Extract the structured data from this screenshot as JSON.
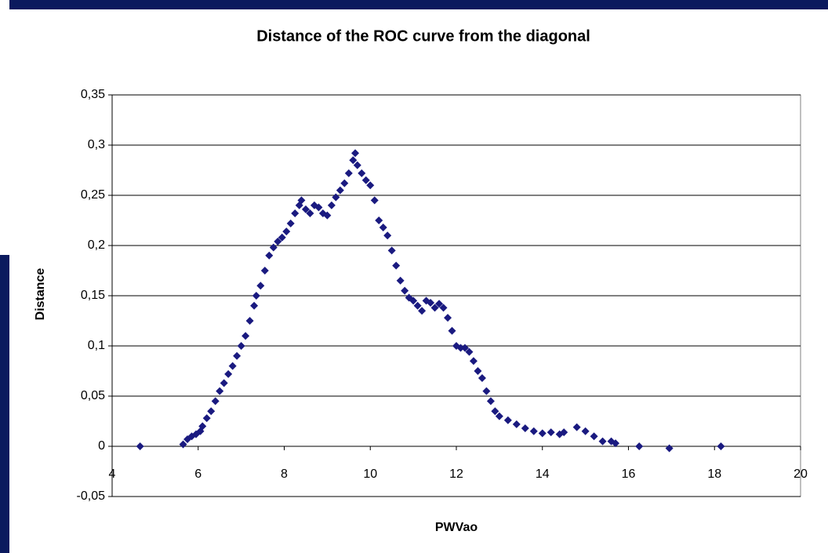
{
  "chart_data": {
    "type": "scatter",
    "title": "Distance of the ROC curve from the diagonal",
    "x_label": "PWVao",
    "y_label": "Distance",
    "color": "#1a1a80",
    "grid": true,
    "xlim": [
      4,
      20
    ],
    "xticks": [
      4,
      6,
      8,
      10,
      12,
      14,
      16,
      18,
      20
    ],
    "ylim": [
      -0.05,
      0.35
    ],
    "yticks": [
      {
        "value": -0.05,
        "label": "-0,05"
      },
      0,
      {
        "value": 0.05,
        "label": "0,05"
      },
      {
        "value": 0.1,
        "label": "0,1"
      },
      {
        "value": 0.15,
        "label": "0,15"
      },
      {
        "value": 0.2,
        "label": "0,2"
      },
      {
        "value": 0.25,
        "label": "0,25"
      },
      {
        "value": 0.3,
        "label": "0,3"
      },
      {
        "value": 0.35,
        "label": "0,35"
      }
    ],
    "x": [
      4.65,
      5.65,
      5.75,
      5.85,
      5.95,
      6.05,
      6.1,
      6.2,
      6.3,
      6.4,
      6.5,
      6.6,
      6.7,
      6.8,
      6.9,
      7.0,
      7.1,
      7.2,
      7.3,
      7.35,
      7.45,
      7.55,
      7.65,
      7.75,
      7.85,
      7.95,
      8.05,
      8.15,
      8.25,
      8.35,
      8.4,
      8.5,
      8.6,
      8.7,
      8.8,
      8.9,
      9.0,
      9.1,
      9.2,
      9.3,
      9.4,
      9.5,
      9.6,
      9.65,
      9.7,
      9.8,
      9.9,
      10.0,
      10.1,
      10.2,
      10.3,
      10.4,
      10.5,
      10.6,
      10.7,
      10.8,
      10.9,
      11.0,
      11.1,
      11.2,
      11.3,
      11.4,
      11.5,
      11.6,
      11.7,
      11.8,
      11.9,
      12.0,
      12.1,
      12.2,
      12.3,
      12.4,
      12.5,
      12.6,
      12.7,
      12.8,
      12.9,
      13.0,
      13.2,
      13.4,
      13.6,
      13.8,
      14.0,
      14.2,
      14.4,
      14.5,
      14.8,
      15.0,
      15.2,
      15.4,
      15.6,
      15.7,
      16.25,
      16.95,
      18.15
    ],
    "values": [
      0,
      0.002,
      0.007,
      0.01,
      0.012,
      0.015,
      0.02,
      0.028,
      0.035,
      0.045,
      0.055,
      0.063,
      0.072,
      0.08,
      0.09,
      0.1,
      0.11,
      0.125,
      0.14,
      0.15,
      0.16,
      0.175,
      0.19,
      0.198,
      0.204,
      0.208,
      0.214,
      0.222,
      0.232,
      0.24,
      0.245,
      0.236,
      0.232,
      0.24,
      0.238,
      0.232,
      0.23,
      0.24,
      0.248,
      0.255,
      0.262,
      0.272,
      0.285,
      0.292,
      0.28,
      0.272,
      0.265,
      0.26,
      0.245,
      0.225,
      0.218,
      0.21,
      0.195,
      0.18,
      0.165,
      0.155,
      0.148,
      0.145,
      0.14,
      0.135,
      0.145,
      0.143,
      0.138,
      0.142,
      0.138,
      0.128,
      0.115,
      0.1,
      0.098,
      0.098,
      0.094,
      0.085,
      0.075,
      0.068,
      0.055,
      0.045,
      0.035,
      0.03,
      0.026,
      0.022,
      0.018,
      0.015,
      0.013,
      0.014,
      0.012,
      0.014,
      0.019,
      0.015,
      0.01,
      0.005,
      0.005,
      0.003,
      0,
      -0.002,
      0
    ]
  }
}
